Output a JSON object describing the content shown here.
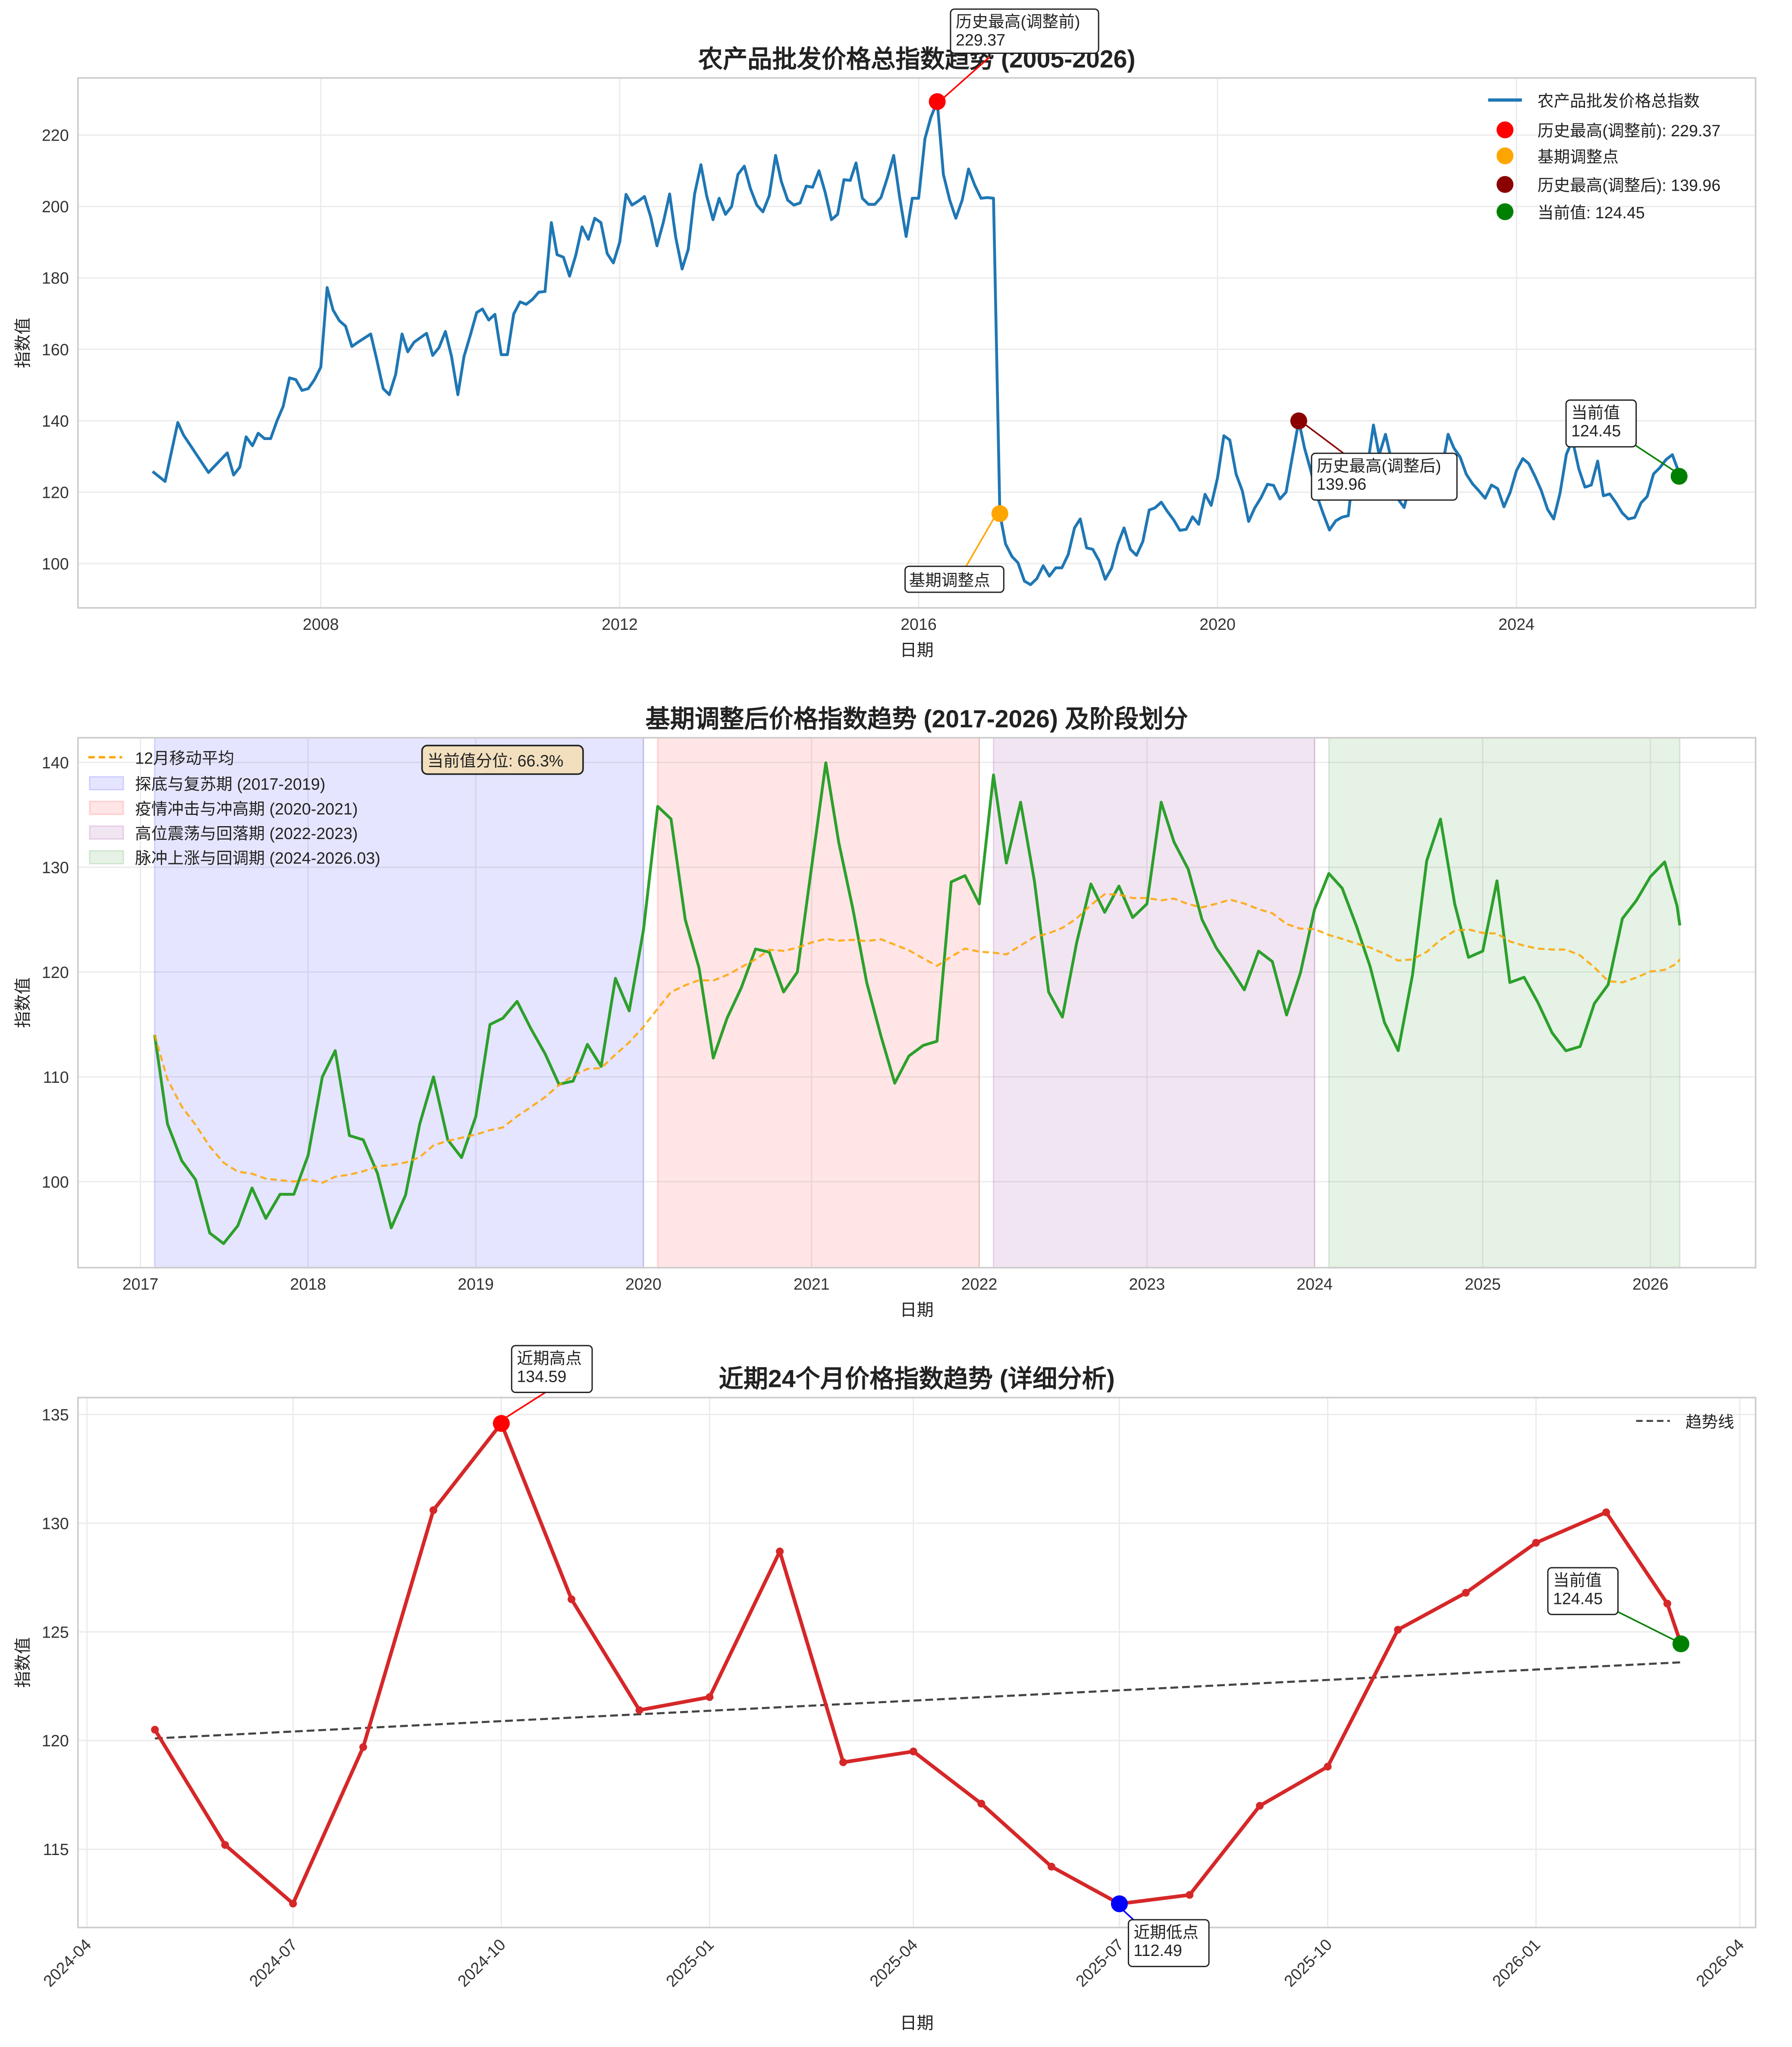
{
  "chart_data": [
    {
      "type": "line",
      "title": "农产品批发价格总指数趋势 (2005-2026)",
      "xlabel": "日期",
      "ylabel": "指数值",
      "xlim": [
        "2004-10-01",
        "2027-03-15"
      ],
      "ylim": [
        87.6,
        236
      ],
      "grid": true,
      "legend_placement": "top-right",
      "xticks": [
        "2008",
        "2012",
        "2016",
        "2020",
        "2024"
      ],
      "yticks": [
        100,
        120,
        140,
        160,
        180,
        200,
        220
      ],
      "series_color": "#1f77b4",
      "legend": {
        "series": "农产品批发价格总指数",
        "peak_pre": "历史最高(调整前): 229.37",
        "base": "基期调整点",
        "peak_post": "历史最高(调整后): 139.96",
        "current": "当前值: 124.45"
      },
      "marker_colors": {
        "peak_pre": "#ff0000",
        "base": "#ffa500",
        "peak_post": "#8b0000",
        "current": "#008000"
      },
      "markers": {
        "peak_pre": [
          "2016-04",
          229.37
        ],
        "base": [
          "2017-02",
          114.0
        ],
        "peak_post": [
          "2021-02",
          139.96
        ],
        "current": [
          "2026-03-06",
          124.45
        ]
      },
      "annotations": {
        "peak_pre": [
          "历史最高(调整前)",
          "229.37"
        ],
        "base": "基期调整点",
        "peak_post": [
          "历史最高(调整后)",
          "139.96"
        ],
        "current": [
          "当前值",
          "124.45"
        ]
      },
      "points_before_adjustment": [
        [
          "2005-10",
          125.8
        ],
        [
          "2005-12",
          123
        ],
        [
          "2006-02",
          139.5
        ],
        [
          "2006-03",
          136
        ],
        [
          "2006-07",
          125.5
        ],
        [
          "2006-10",
          131
        ],
        [
          "2006-11",
          124.8
        ],
        [
          "2006-12",
          127
        ],
        [
          "2007-01",
          135.5
        ],
        [
          "2007-02",
          133
        ],
        [
          "2007-03",
          136.5
        ],
        [
          "2007-04",
          135
        ],
        [
          "2007-05",
          135
        ],
        [
          "2007-06",
          140
        ],
        [
          "2007-07",
          144
        ],
        [
          "2007-08",
          152
        ],
        [
          "2007-09",
          151.5
        ],
        [
          "2007-10",
          148.5
        ],
        [
          "2007-11",
          149
        ],
        [
          "2007-12",
          151.5
        ],
        [
          "2008-01",
          155
        ],
        [
          "2008-02",
          177.3
        ],
        [
          "2008-03",
          171
        ],
        [
          "2008-04",
          168
        ],
        [
          "2008-05",
          166.5
        ],
        [
          "2008-06",
          160.8
        ],
        [
          "2008-07",
          162
        ],
        [
          "2008-09",
          164.3
        ],
        [
          "2008-10",
          157
        ],
        [
          "2008-11",
          149
        ],
        [
          "2008-12",
          147.3
        ],
        [
          "2009-01",
          153
        ],
        [
          "2009-02",
          164.3
        ],
        [
          "2009-03",
          159.3
        ],
        [
          "2009-04",
          162
        ],
        [
          "2009-06",
          164.5
        ],
        [
          "2009-07",
          158.3
        ],
        [
          "2009-08",
          160.5
        ],
        [
          "2009-09",
          165
        ],
        [
          "2009-10",
          158
        ],
        [
          "2009-11",
          147.3
        ],
        [
          "2009-12",
          158
        ],
        [
          "2010-01",
          164
        ],
        [
          "2010-02",
          170.3
        ],
        [
          "2010-03",
          171.3
        ],
        [
          "2010-04",
          168.2
        ],
        [
          "2010-05",
          169.8
        ],
        [
          "2010-06",
          158.5
        ],
        [
          "2010-07",
          158.5
        ],
        [
          "2010-08",
          169.9
        ],
        [
          "2010-09",
          173.3
        ],
        [
          "2010-10",
          172.6
        ],
        [
          "2010-11",
          174
        ],
        [
          "2010-12",
          176
        ],
        [
          "2011-01",
          176.2
        ],
        [
          "2011-02",
          195.5
        ],
        [
          "2011-03",
          186.5
        ],
        [
          "2011-04",
          185.8
        ],
        [
          "2011-05",
          180.5
        ],
        [
          "2011-06",
          186.5
        ],
        [
          "2011-07",
          194.3
        ],
        [
          "2011-08",
          190.8
        ],
        [
          "2011-09",
          196.7
        ],
        [
          "2011-10",
          195.5
        ],
        [
          "2011-11",
          186.8
        ],
        [
          "2011-12",
          184.2
        ],
        [
          "2012-01",
          190
        ],
        [
          "2012-02",
          203.4
        ],
        [
          "2012-03",
          200.4
        ],
        [
          "2012-04",
          201.5
        ],
        [
          "2012-05",
          202.8
        ],
        [
          "2012-06",
          197
        ],
        [
          "2012-07",
          189
        ],
        [
          "2012-08",
          195.5
        ],
        [
          "2012-09",
          203.5
        ],
        [
          "2012-10",
          191.3
        ],
        [
          "2012-11",
          182.5
        ],
        [
          "2012-12",
          188
        ],
        [
          "2013-01",
          203.5
        ],
        [
          "2013-02",
          211.7
        ],
        [
          "2013-03",
          203
        ],
        [
          "2013-04",
          196.3
        ],
        [
          "2013-05",
          202.3
        ],
        [
          "2013-06",
          197.8
        ],
        [
          "2013-07",
          200
        ],
        [
          "2013-08",
          209
        ],
        [
          "2013-09",
          211.3
        ],
        [
          "2013-10",
          205
        ],
        [
          "2013-11",
          200.4
        ],
        [
          "2013-12",
          198.5
        ],
        [
          "2014-01",
          203
        ],
        [
          "2014-02",
          214.3
        ],
        [
          "2014-03",
          207
        ],
        [
          "2014-04",
          201.8
        ],
        [
          "2014-05",
          200.4
        ],
        [
          "2014-06",
          201
        ],
        [
          "2014-07",
          205.7
        ],
        [
          "2014-08",
          205.4
        ],
        [
          "2014-09",
          210
        ],
        [
          "2014-10",
          204
        ],
        [
          "2014-11",
          196.3
        ],
        [
          "2014-12",
          197.8
        ],
        [
          "2015-01",
          207.5
        ],
        [
          "2015-02",
          207.3
        ],
        [
          "2015-03",
          212.2
        ],
        [
          "2015-04",
          202.3
        ],
        [
          "2015-05",
          200.6
        ],
        [
          "2015-06",
          200.6
        ],
        [
          "2015-07",
          202.5
        ],
        [
          "2015-08",
          208
        ],
        [
          "2015-09",
          214.3
        ],
        [
          "2015-10",
          202.3
        ],
        [
          "2015-11",
          191.6
        ],
        [
          "2015-12",
          202.3
        ],
        [
          "2016-01",
          202.3
        ],
        [
          "2016-02",
          219
        ],
        [
          "2016-03",
          225
        ],
        [
          "2016-04",
          229.37
        ],
        [
          "2016-05",
          209
        ],
        [
          "2016-06",
          201.8
        ],
        [
          "2016-07",
          196.7
        ],
        [
          "2016-08",
          201.8
        ],
        [
          "2016-09",
          210.5
        ],
        [
          "2016-10",
          206
        ],
        [
          "2016-11",
          202.3
        ],
        [
          "2016-12",
          202.5
        ],
        [
          "2017-01",
          202.3
        ]
      ]
    },
    {
      "type": "line",
      "title": "基期调整后价格指数趋势 (2017-2026) 及阶段划分",
      "xlabel": "日期",
      "ylabel": "指数值",
      "xlim": [
        "2016-08-18",
        "2026-08-18"
      ],
      "ylim": [
        91.8,
        142.35
      ],
      "grid": true,
      "legend_placement": "top-left",
      "xticks": [
        "2017",
        "2018",
        "2019",
        "2020",
        "2021",
        "2022",
        "2023",
        "2024",
        "2025",
        "2026"
      ],
      "yticks": [
        100,
        110,
        120,
        130,
        140
      ],
      "series_color": "#2ca02c",
      "moving_average": {
        "label": "12月移动平均",
        "window": 12,
        "color": "#ffa500"
      },
      "annotation": "当前值分位: 66.3%",
      "phases": [
        {
          "label": "探底与复苏期 (2017-2019)",
          "start": "2017-02",
          "end": "2020-01",
          "color": "#0000ff"
        },
        {
          "label": "疫情冲击与冲高期 (2020-2021)",
          "start": "2020-02",
          "end": "2022-01",
          "color": "#ff0000"
        },
        {
          "label": "高位震荡与回落期 (2022-2023)",
          "start": "2022-02",
          "end": "2024-01",
          "color": "#800080"
        },
        {
          "label": "脉冲上涨与回调期 (2024-2026.03)",
          "start": "2024-02",
          "end": "2026-03-06",
          "color": "#008000"
        }
      ],
      "points": [
        [
          "2017-02",
          114.0
        ],
        [
          "2017-03",
          105.5
        ],
        [
          "2017-04",
          102
        ],
        [
          "2017-05",
          100.2
        ],
        [
          "2017-06",
          95.1
        ],
        [
          "2017-07",
          94.1
        ],
        [
          "2017-08",
          95.8
        ],
        [
          "2017-09",
          99.4
        ],
        [
          "2017-10",
          96.5
        ],
        [
          "2017-11",
          98.8
        ],
        [
          "2017-12",
          98.8
        ],
        [
          "2018-01",
          102.5
        ],
        [
          "2018-02",
          110
        ],
        [
          "2018-03",
          112.5
        ],
        [
          "2018-04",
          104.4
        ],
        [
          "2018-05",
          104
        ],
        [
          "2018-06",
          100.8
        ],
        [
          "2018-07",
          95.6
        ],
        [
          "2018-08",
          98.7
        ],
        [
          "2018-09",
          105.5
        ],
        [
          "2018-10",
          110
        ],
        [
          "2018-11",
          104
        ],
        [
          "2018-12",
          102.3
        ],
        [
          "2019-01",
          106.2
        ],
        [
          "2019-02",
          115
        ],
        [
          "2019-03",
          115.6
        ],
        [
          "2019-04",
          117.2
        ],
        [
          "2019-05",
          114.6
        ],
        [
          "2019-06",
          112.2
        ],
        [
          "2019-07",
          109.3
        ],
        [
          "2019-08",
          109.6
        ],
        [
          "2019-09",
          113.1
        ],
        [
          "2019-10",
          111
        ],
        [
          "2019-11",
          119.4
        ],
        [
          "2019-12",
          116.3
        ],
        [
          "2020-01",
          124
        ],
        [
          "2020-02",
          135.8
        ],
        [
          "2020-03",
          134.6
        ],
        [
          "2020-04",
          125
        ],
        [
          "2020-05",
          120.4
        ],
        [
          "2020-06",
          111.8
        ],
        [
          "2020-07",
          115.6
        ],
        [
          "2020-08",
          118.5
        ],
        [
          "2020-09",
          122.2
        ],
        [
          "2020-10",
          121.9
        ],
        [
          "2020-11",
          118.1
        ],
        [
          "2020-12",
          120
        ],
        [
          "2021-01",
          130
        ],
        [
          "2021-02",
          139.96
        ],
        [
          "2021-03",
          132.4
        ],
        [
          "2021-04",
          126
        ],
        [
          "2021-05",
          119
        ],
        [
          "2021-06",
          113.9
        ],
        [
          "2021-07",
          109.4
        ],
        [
          "2021-08",
          112
        ],
        [
          "2021-09",
          113
        ],
        [
          "2021-10",
          113.4
        ],
        [
          "2021-11",
          128.6
        ],
        [
          "2021-12",
          129.2
        ],
        [
          "2022-01",
          126.5
        ],
        [
          "2022-02",
          138.8
        ],
        [
          "2022-03",
          130.4
        ],
        [
          "2022-04",
          136.2
        ],
        [
          "2022-05",
          128.7
        ],
        [
          "2022-06",
          118.1
        ],
        [
          "2022-07",
          115.7
        ],
        [
          "2022-08",
          122.8
        ],
        [
          "2022-09",
          128.4
        ],
        [
          "2022-10",
          125.7
        ],
        [
          "2022-11",
          128.2
        ],
        [
          "2022-12",
          125.2
        ],
        [
          "2023-01",
          126.5
        ],
        [
          "2023-02",
          136.2
        ],
        [
          "2023-03",
          132.4
        ],
        [
          "2023-04",
          129.8
        ],
        [
          "2023-05",
          125
        ],
        [
          "2023-06",
          122.3
        ],
        [
          "2023-07",
          120.4
        ],
        [
          "2023-08",
          118.3
        ],
        [
          "2023-09",
          122
        ],
        [
          "2023-10",
          121
        ],
        [
          "2023-11",
          115.9
        ],
        [
          "2023-12",
          119.9
        ],
        [
          "2024-01",
          126
        ],
        [
          "2024-02",
          129.4
        ],
        [
          "2024-03",
          128
        ],
        [
          "2024-04",
          124.4
        ],
        [
          "2024-05",
          120.5
        ],
        [
          "2024-06",
          115.2
        ],
        [
          "2024-07",
          112.5
        ],
        [
          "2024-08",
          119.7
        ],
        [
          "2024-09",
          130.6
        ],
        [
          "2024-10",
          134.59
        ],
        [
          "2024-11",
          126.5
        ],
        [
          "2024-12",
          121.4
        ],
        [
          "2025-01",
          122
        ],
        [
          "2025-02",
          128.7
        ],
        [
          "2025-03",
          119
        ],
        [
          "2025-04",
          119.5
        ],
        [
          "2025-05",
          117.1
        ],
        [
          "2025-06",
          114.2
        ],
        [
          "2025-07",
          112.49
        ],
        [
          "2025-08",
          112.9
        ],
        [
          "2025-09",
          117
        ],
        [
          "2025-10",
          118.8
        ],
        [
          "2025-11",
          125.1
        ],
        [
          "2025-12",
          126.8
        ],
        [
          "2026-01",
          129.1
        ],
        [
          "2026-02",
          130.5
        ],
        [
          "2026-02-28",
          126.3
        ],
        [
          "2026-03-06",
          124.45
        ]
      ]
    },
    {
      "type": "line",
      "title": "近期24个月价格指数趋势 (详细分析)",
      "xlabel": "日期",
      "ylabel": "指数值",
      "xlim": [
        "2024-03-28",
        "2026-04-08"
      ],
      "ylim": [
        111.4,
        135.78
      ],
      "grid": true,
      "legend_placement": "top-right",
      "xticks": [
        "2024-04",
        "2024-07",
        "2024-10",
        "2025-01",
        "2025-04",
        "2025-07",
        "2025-10",
        "2026-01",
        "2026-04"
      ],
      "yticks": [
        115,
        120,
        125,
        130,
        135
      ],
      "series_color": "#d62728",
      "trend": {
        "label": "趋势线",
        "start": [
          "2024-05",
          120.1
        ],
        "end": [
          "2026-03-06",
          123.6
        ],
        "color": "#444444"
      },
      "markers": {
        "high": {
          "point": [
            "2024-10",
            134.59
          ],
          "color": "#ff0000",
          "label": [
            "近期高点",
            "134.59"
          ]
        },
        "low": {
          "point": [
            "2025-07",
            112.49
          ],
          "color": "#0000ff",
          "label": [
            "近期低点",
            "112.49"
          ]
        },
        "current": {
          "point": [
            "2026-03-06",
            124.45
          ],
          "color": "#008000",
          "label": [
            "当前值",
            "124.45"
          ]
        }
      },
      "points": [
        [
          "2024-05",
          120.5
        ],
        [
          "2024-06",
          115.2
        ],
        [
          "2024-07",
          112.5
        ],
        [
          "2024-08",
          119.7
        ],
        [
          "2024-09",
          130.6
        ],
        [
          "2024-10",
          134.59
        ],
        [
          "2024-11",
          126.5
        ],
        [
          "2024-12",
          121.4
        ],
        [
          "2025-01",
          122
        ],
        [
          "2025-02",
          128.7
        ],
        [
          "2025-03",
          119
        ],
        [
          "2025-04",
          119.5
        ],
        [
          "2025-05",
          117.1
        ],
        [
          "2025-06",
          114.2
        ],
        [
          "2025-07",
          112.49
        ],
        [
          "2025-08",
          112.9
        ],
        [
          "2025-09",
          117
        ],
        [
          "2025-10",
          118.8
        ],
        [
          "2025-11",
          125.1
        ],
        [
          "2025-12",
          126.8
        ],
        [
          "2026-01",
          129.1
        ],
        [
          "2026-02",
          130.5
        ],
        [
          "2026-02-28",
          126.3
        ],
        [
          "2026-03-06",
          124.45
        ]
      ]
    }
  ]
}
